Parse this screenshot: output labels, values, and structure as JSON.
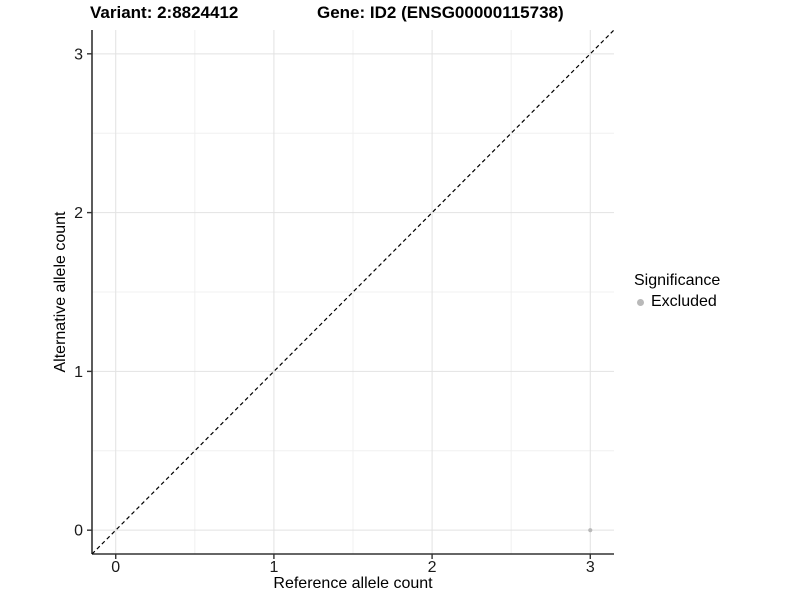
{
  "chart_data": {
    "type": "scatter",
    "title_left": "Variant: 2:8824412",
    "title_right": "Gene: ID2 (ENSG00000115738)",
    "xlabel": "Reference allele count",
    "ylabel": "Alternative allele count",
    "xlim": [
      -0.15,
      3.15
    ],
    "ylim": [
      -0.15,
      3.15
    ],
    "xticks": [
      0,
      1,
      2,
      3
    ],
    "yticks": [
      0,
      1,
      2,
      3
    ],
    "xticks_minor": [
      0.5,
      1.5,
      2.5
    ],
    "yticks_minor": [
      0.5,
      1.5,
      2.5
    ],
    "grid": true,
    "series": [
      {
        "name": "Excluded",
        "color": "#b9b9b9",
        "points": [
          {
            "x": 3,
            "y": 0
          }
        ]
      }
    ],
    "reference_line": {
      "style": "dashed",
      "slope": 1,
      "intercept": 0,
      "color": "#000000"
    },
    "legend": {
      "title": "Significance",
      "position": "right",
      "items": [
        {
          "label": "Excluded",
          "color": "#b9b9b9"
        }
      ]
    },
    "colors": {
      "background": "#ffffff",
      "grid_major": "#e2e2e2",
      "grid_minor": "#f0f0f0",
      "axis_line": "#333333",
      "tick_mark": "#333333",
      "tick_label": "#1a1a1a"
    }
  }
}
